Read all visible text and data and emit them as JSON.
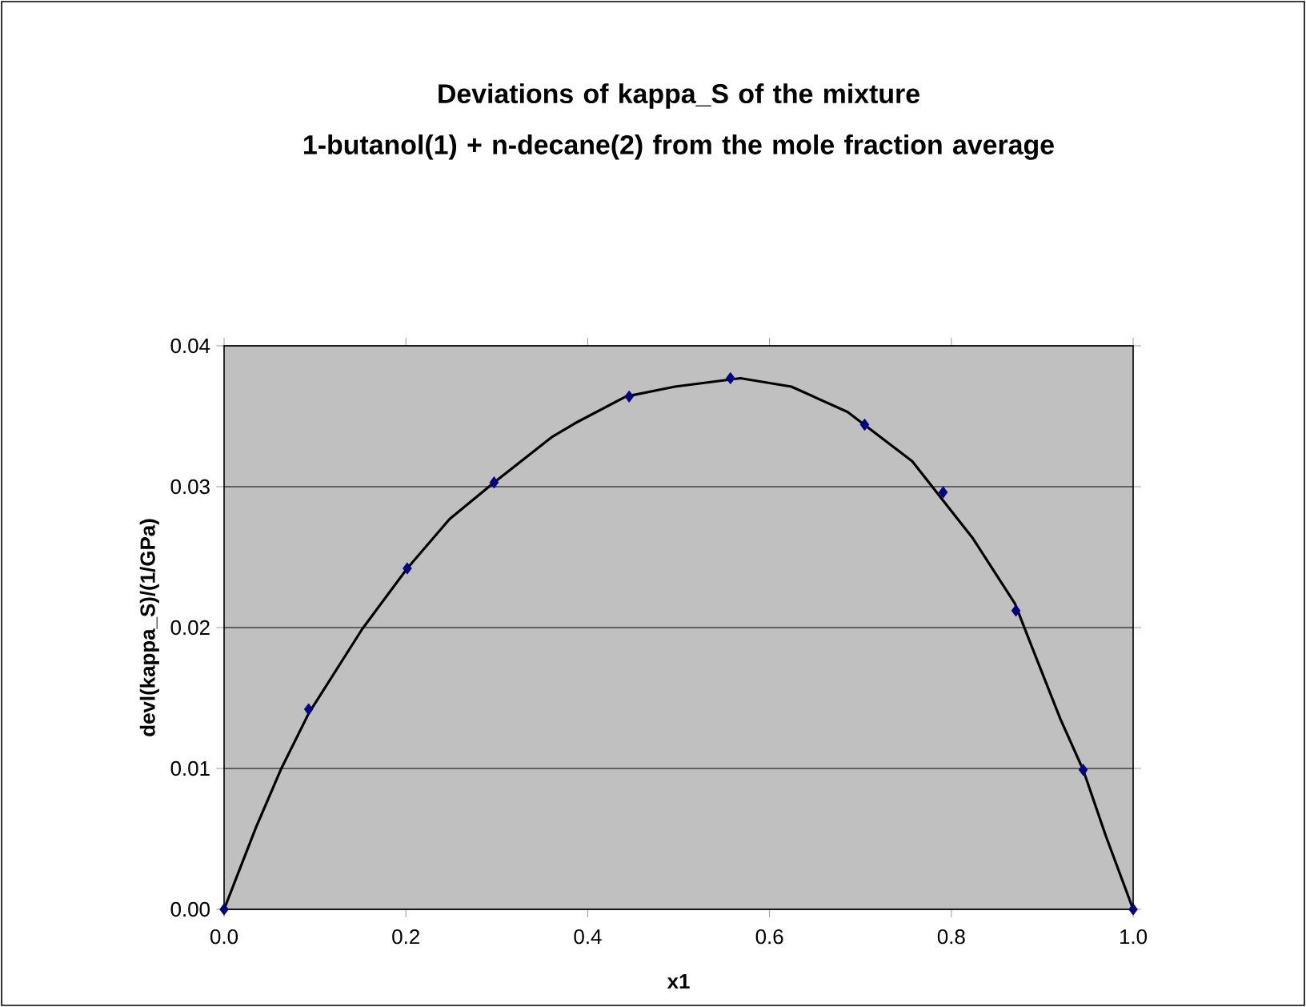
{
  "chart_data": {
    "type": "scatter",
    "title": "Deviations of kappa_S of the mixture\n1-butanol(1) + n-decane(2) from the mole fraction average",
    "xlabel": "x1",
    "ylabel": "devl(kappa_S)/(1/GPa)",
    "xlim": [
      0,
      1
    ],
    "ylim": [
      0,
      0.04
    ],
    "xticks": [
      {
        "value": 0,
        "label": "0.0"
      },
      {
        "value": 0.2,
        "label": "0.2"
      },
      {
        "value": 0.4,
        "label": "0.4"
      },
      {
        "value": 0.6,
        "label": "0.6"
      },
      {
        "value": 0.8,
        "label": "0.8"
      },
      {
        "value": 1,
        "label": "1.0"
      }
    ],
    "yticks": [
      {
        "value": 0,
        "label": "0.00"
      },
      {
        "value": 0.01,
        "label": "0.01"
      },
      {
        "value": 0.02,
        "label": "0.02"
      },
      {
        "value": 0.03,
        "label": "0.03"
      },
      {
        "value": 0.04,
        "label": "0.04"
      }
    ],
    "grid": "y",
    "series": [
      {
        "type": "line",
        "color": "#000000",
        "marker": "none",
        "line_style": "solid",
        "x": [
          0,
          0.035,
          0.063,
          0.093,
          0.152,
          0.2015,
          0.248,
          0.297,
          0.36,
          0.386,
          0.442,
          0.496,
          0.568,
          0.624,
          0.686,
          0.757,
          0.824,
          0.87,
          0.89,
          0.92,
          0.945,
          0.97,
          1.0
        ],
        "values": [
          0,
          0.0058,
          0.01,
          0.0139,
          0.0199,
          0.0242,
          0.0277,
          0.0303,
          0.0335,
          0.0345,
          0.0364,
          0.0371,
          0.0377,
          0.0371,
          0.0353,
          0.0318,
          0.0263,
          0.0217,
          0.0184,
          0.0135,
          0.0099,
          0.0052,
          0
        ]
      },
      {
        "color": "#000080",
        "marker": "diamond",
        "x": [
          0,
          0.093,
          0.2015,
          0.297,
          0.4456,
          0.557,
          0.7046,
          0.791,
          0.871,
          0.945,
          1.0
        ],
        "values": [
          0,
          0.0142,
          0.0242,
          0.0303,
          0.0364,
          0.0377,
          0.0344,
          0.0296,
          0.0212,
          0.0099,
          0
        ]
      }
    ]
  }
}
